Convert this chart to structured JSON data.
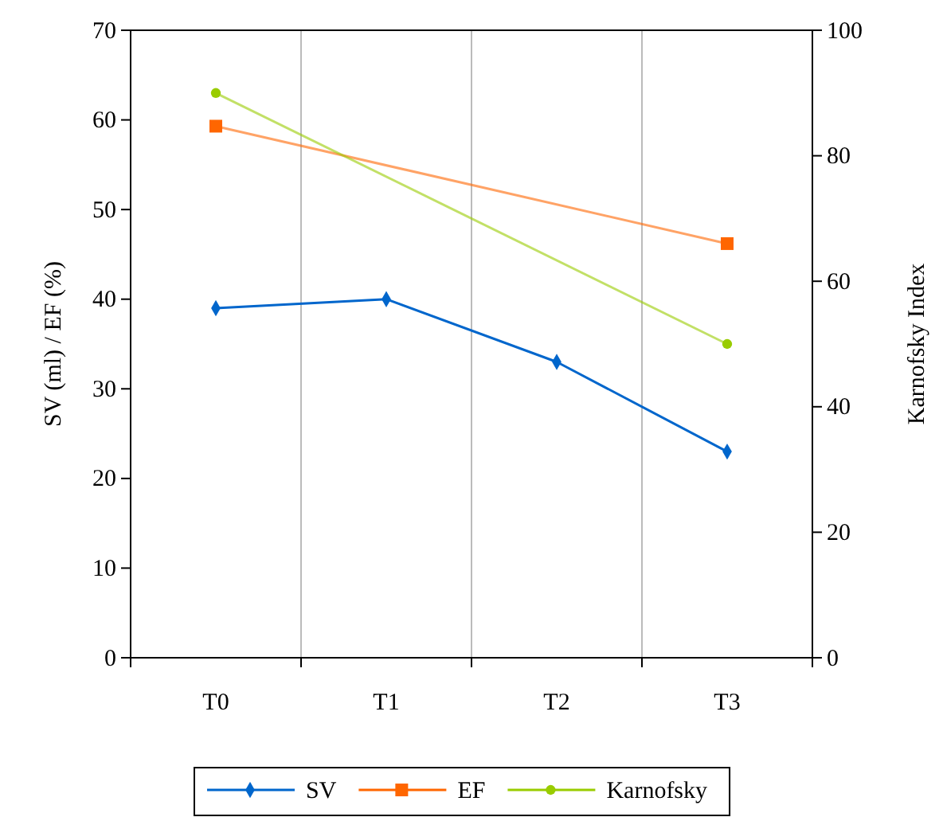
{
  "chart_data": {
    "type": "line",
    "categories": [
      "T0",
      "T1",
      "T2",
      "T3"
    ],
    "ylabel": "SV (ml) / EF (%)",
    "y2label": "Karnofsky Index",
    "ylim": [
      0,
      70
    ],
    "yticks": [
      0,
      10,
      20,
      30,
      40,
      50,
      60,
      70
    ],
    "y2lim": [
      0,
      100
    ],
    "y2ticks": [
      0,
      20,
      40,
      60,
      80,
      100
    ],
    "grid": "x",
    "legend": "bottom",
    "series": [
      {
        "name": "SV",
        "color": "#0066cc",
        "marker": "diamond",
        "values": [
          39,
          40,
          33,
          23
        ]
      },
      {
        "name": "EF",
        "color": "#ff6600",
        "marker": "square",
        "values": [
          59.3,
          null,
          null,
          46.2
        ]
      },
      {
        "name": "Karnofsky",
        "color": "#99cc00",
        "marker": "circle",
        "axis": "y2",
        "values": [
          90,
          null,
          null,
          50
        ]
      }
    ]
  }
}
